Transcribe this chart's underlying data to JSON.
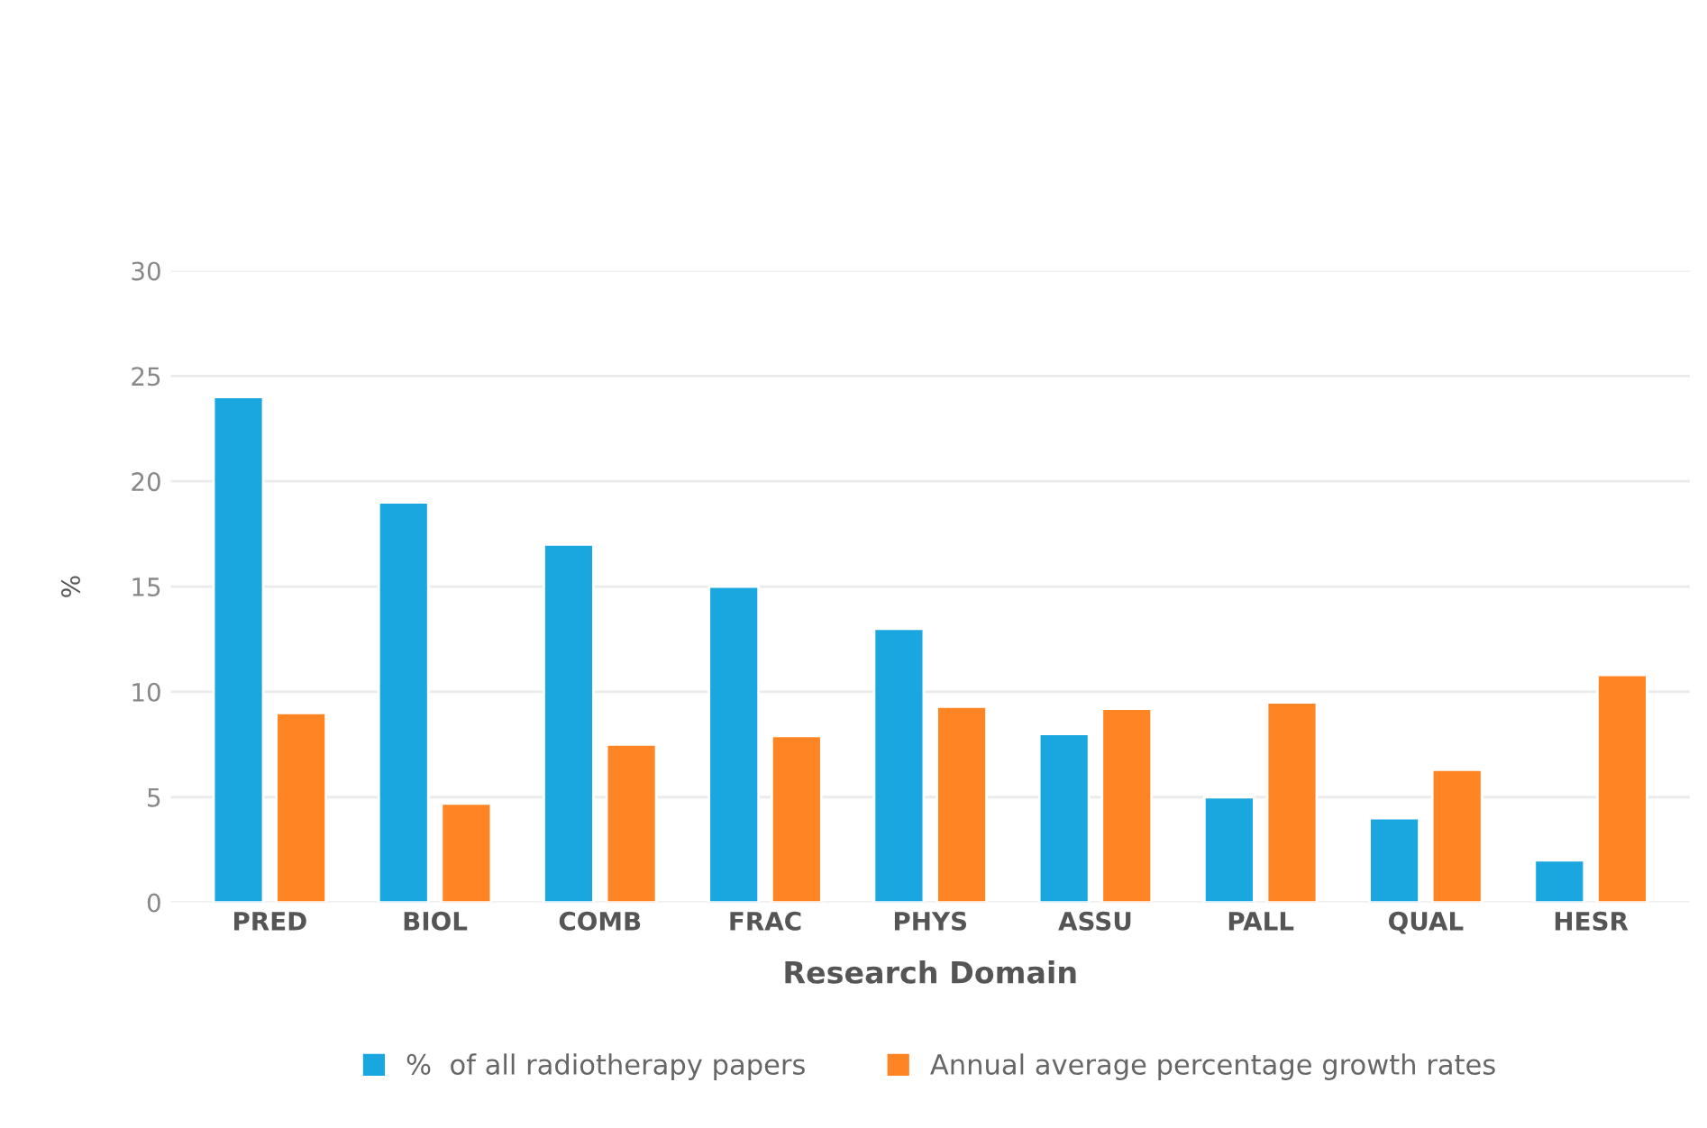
{
  "chart_data": {
    "type": "bar",
    "xlabel": "Research Domain",
    "ylabel": "%",
    "categories": [
      "PRED",
      "BIOL",
      "COMB",
      "FRAC",
      "PHYS",
      "ASSU",
      "PALL",
      "QUAL",
      "HESR"
    ],
    "series": [
      {
        "name": "%  of all radiotherapy papers",
        "color": "#1aa7e0",
        "values": [
          24,
          19,
          17,
          15,
          13,
          8,
          5,
          4,
          2
        ]
      },
      {
        "name": "Annual average percentage growth rates",
        "color": "#ff8424",
        "values": [
          9.0,
          4.7,
          7.5,
          7.9,
          9.3,
          9.2,
          9.5,
          6.3,
          10.8
        ]
      }
    ],
    "ylim": [
      0,
      30
    ],
    "yticks": [
      0,
      5,
      10,
      15,
      20,
      25,
      30
    ],
    "grid": "y",
    "legend": "bottom"
  }
}
